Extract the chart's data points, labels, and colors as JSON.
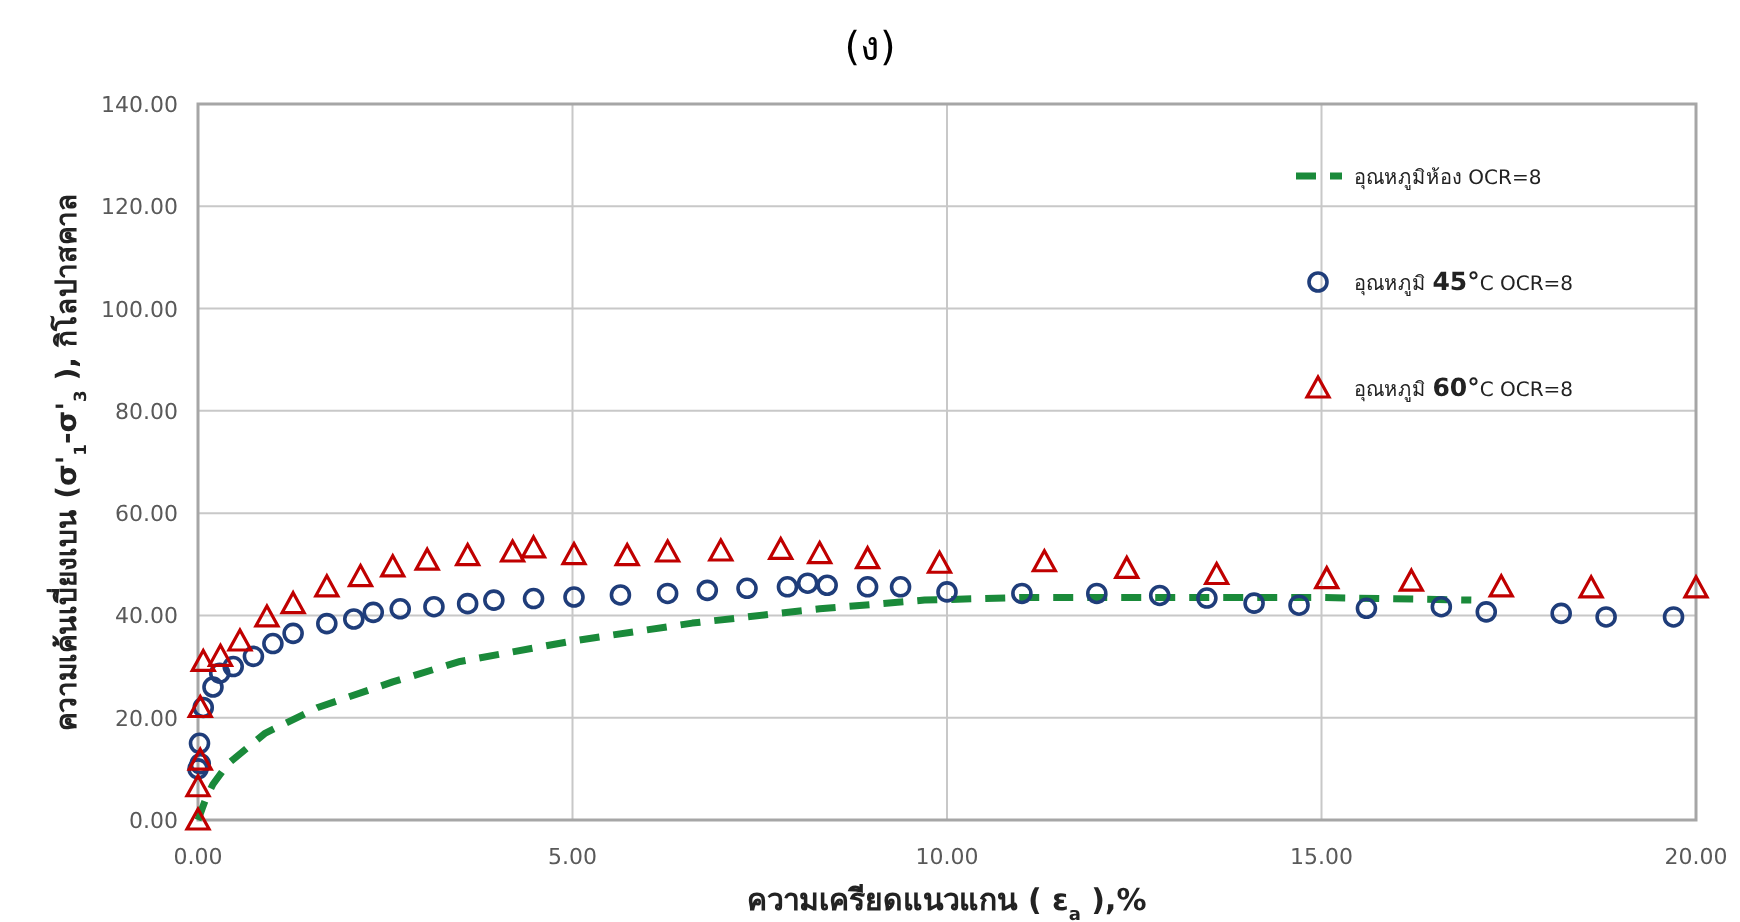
{
  "chart_data": {
    "type": "scatter",
    "title": "(ง)",
    "xlabel": "ความเครียดแนวแกน ( ε$_{a}$ ),%",
    "ylabel": "ความเค้นเบี่ยงเบน (σ'$_{1}$-σ'$_{3}$ ), กิโลปาสคาล",
    "xlim": [
      0,
      20
    ],
    "ylim": [
      0,
      140
    ],
    "xticks": [
      {
        "value": 0,
        "label": "0.00"
      },
      {
        "value": 5,
        "label": "5.00"
      },
      {
        "value": 10,
        "label": "10.00"
      },
      {
        "value": 15,
        "label": "15.00"
      },
      {
        "value": 20,
        "label": "20.00"
      }
    ],
    "yticks": [
      {
        "value": 0,
        "label": "0.00"
      },
      {
        "value": 20,
        "label": "20.00"
      },
      {
        "value": 40,
        "label": "40.00"
      },
      {
        "value": 60,
        "label": "60.00"
      },
      {
        "value": 80,
        "label": "80.00"
      },
      {
        "value": 100,
        "label": "100.00"
      },
      {
        "value": 120,
        "label": "120.00"
      },
      {
        "value": 140,
        "label": "140.00"
      }
    ],
    "grid": true,
    "legend": "top right",
    "series": [
      {
        "name": "อุณหภูมิห้อง OCR=8",
        "type": "line",
        "line_style": "dashed",
        "marker": "none",
        "color": "#1a8a3a",
        "x": [
          0,
          0.05,
          0.1,
          0.2,
          0.4,
          0.9,
          1.6,
          2.6,
          3.5,
          5,
          6.6,
          8.3,
          9.7,
          11,
          13,
          15,
          17
        ],
        "values": [
          0,
          2,
          4,
          7,
          11,
          17,
          22,
          27,
          31,
          35,
          38.5,
          41.3,
          43,
          43.5,
          43.5,
          43.5,
          43
        ]
      },
      {
        "name": "อุณหภูมิ **45°**C OCR=8",
        "marker": "circle",
        "color": "#1f3d7a",
        "x": [
          0,
          0.02,
          0.03,
          0.07,
          0.2,
          0.29,
          0.47,
          0.74,
          1.0,
          1.27,
          1.72,
          2.08,
          2.34,
          2.7,
          3.15,
          3.6,
          3.95,
          4.48,
          5.02,
          5.64,
          6.27,
          6.8,
          7.33,
          7.87,
          8.14,
          8.4,
          8.94,
          9.38,
          10,
          11,
          12,
          12.84,
          13.47,
          14.1,
          14.7,
          15.6,
          16.6,
          17.2,
          18.2,
          18.8,
          19.7
        ],
        "values": [
          10,
          15,
          11,
          22,
          26,
          28.7,
          30,
          32,
          34.5,
          36.5,
          38.4,
          39.3,
          40.6,
          41.3,
          41.7,
          42.3,
          43,
          43.3,
          43.6,
          44,
          44.3,
          44.9,
          45.3,
          45.6,
          46.3,
          45.9,
          45.6,
          45.6,
          44.6,
          44.3,
          44.3,
          43.9,
          43.4,
          42.4,
          42,
          41.4,
          41.7,
          40.7,
          40.4,
          39.7,
          39.7
        ]
      },
      {
        "name": "อุณหภูมิ **60°**C OCR=8",
        "marker": "triangle",
        "color": "#c00000",
        "x": [
          0,
          0,
          0.03,
          0.03,
          0.07,
          0.3,
          0.56,
          0.92,
          1.27,
          1.72,
          2.17,
          2.6,
          3.06,
          3.6,
          4.2,
          4.48,
          5.02,
          5.73,
          6.27,
          6.98,
          7.78,
          8.3,
          8.94,
          9.9,
          11.3,
          12.4,
          13.6,
          15.07,
          16.2,
          17.4,
          18.6,
          20
        ],
        "values": [
          0,
          6.5,
          11.7,
          22,
          31,
          32,
          35,
          39.7,
          42.3,
          45.6,
          47.6,
          49.5,
          50.8,
          51.7,
          52.4,
          53.2,
          51.9,
          51.7,
          52.4,
          52.6,
          52.9,
          52.1,
          51.1,
          50.2,
          50.5,
          49.2,
          48,
          47.2,
          46.7,
          45.6,
          45.4,
          45.4
        ]
      }
    ]
  }
}
